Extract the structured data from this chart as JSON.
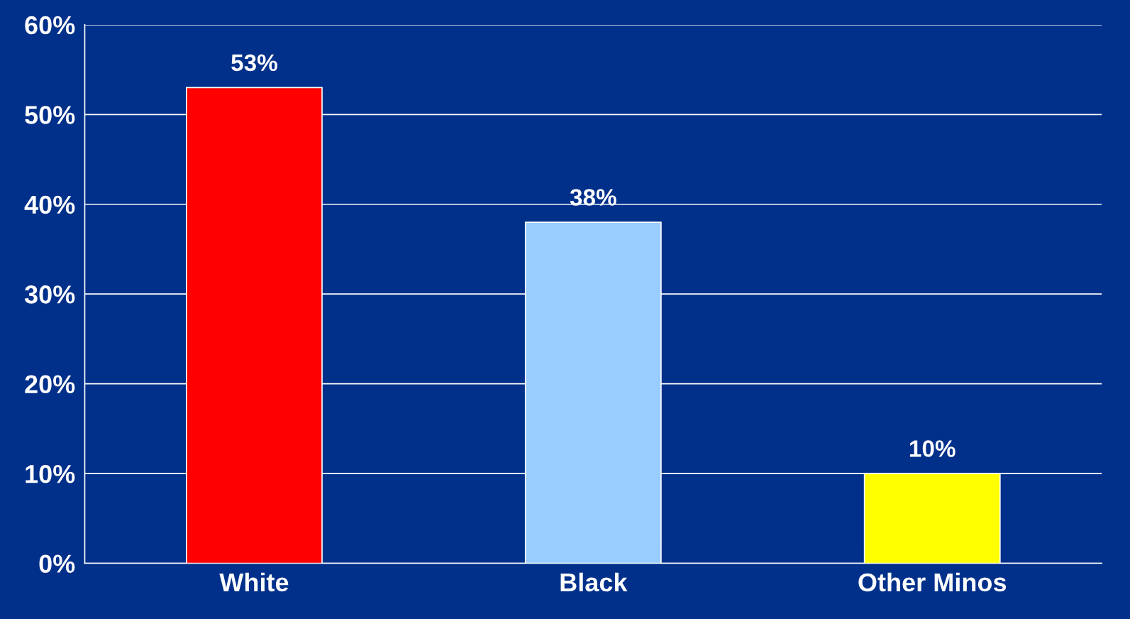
{
  "chart_data": {
    "type": "bar",
    "categories": [
      "White",
      "Black",
      "Other Minos"
    ],
    "values": [
      53,
      38,
      10
    ],
    "colors": [
      "#ff0000",
      "#99ccff",
      "#ffff00"
    ],
    "value_labels": [
      "53%",
      "38%",
      "10%"
    ],
    "ylim": [
      0,
      60
    ],
    "yticks": [
      {
        "value": 0,
        "label": "0%"
      },
      {
        "value": 10,
        "label": "10%"
      },
      {
        "value": 20,
        "label": "20%"
      },
      {
        "value": 30,
        "label": "30%"
      },
      {
        "value": 40,
        "label": "40%"
      },
      {
        "value": 50,
        "label": "50%"
      },
      {
        "value": 60,
        "label": "60%"
      }
    ],
    "grid": "y"
  }
}
